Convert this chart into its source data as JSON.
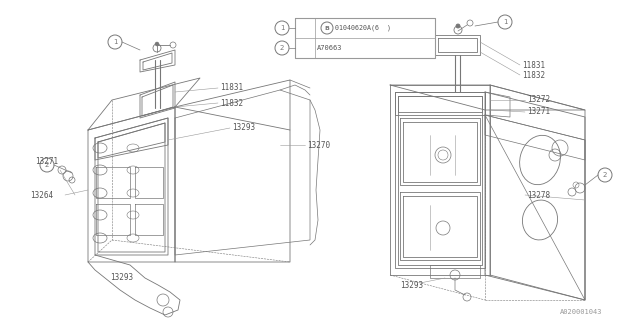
{
  "bg_color": "#ffffff",
  "line_color": "#999999",
  "text_color": "#555555",
  "dark_line": "#777777",
  "diagram_id": "A020001043",
  "legend_line1": "B01040620A(6  )",
  "legend_line2": "A70663",
  "figsize": [
    6.4,
    3.2
  ],
  "dpi": 100
}
